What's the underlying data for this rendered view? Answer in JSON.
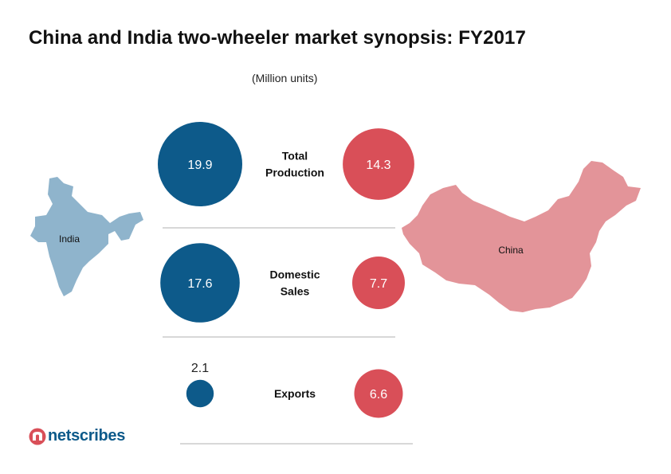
{
  "title": "China and India two-wheeler market synopsis: FY2017",
  "unit_label": "(Million units)",
  "maps": {
    "india_label": "India",
    "china_label": "China"
  },
  "logo": {
    "text": "netscribes"
  },
  "colors": {
    "india": "#0d5a8a",
    "china": "#d94f58",
    "india_map": "#8fb4cc",
    "china_map": "#e39499",
    "divider": "#b0b0b0"
  },
  "chart_data": {
    "type": "bubble",
    "unit": "Million units",
    "categories": [
      "Total Production",
      "Domestic Sales",
      "Exports"
    ],
    "category_lines": [
      [
        "Total",
        "Production"
      ],
      [
        "Domestic",
        "Sales"
      ],
      [
        "Exports"
      ]
    ],
    "series": [
      {
        "name": "India",
        "values": [
          19.9,
          17.6,
          2.1
        ]
      },
      {
        "name": "China",
        "values": [
          14.3,
          7.7,
          6.6
        ]
      }
    ]
  }
}
